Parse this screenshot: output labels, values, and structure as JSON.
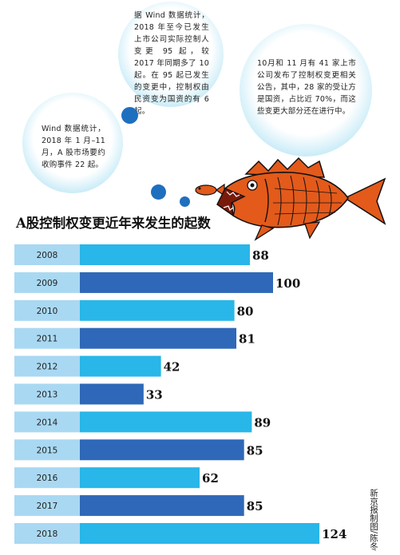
{
  "bubbles": {
    "top": "据 Wind 数据统计，2018 年至今已发生上市公司实际控制人变更 95 起，较 2017 年同期多了 10 起。在 95 起已发生的变更中，控制权由民资变为国资的有 6 起。",
    "right": "10月和 11 月有 41 家上市公司发布了控制权变更相关公告，其中，28 家的受让方是国资，占比近 70%，而这些变更大部分还在进行中。",
    "left": "Wind 数据统计，2018 年 1 月–11 月，A 股市场要约收购事件 22 起。"
  },
  "credit": "新京报制图/陈冬",
  "colors": {
    "light_bar": "#29b6e8",
    "dark_bar": "#2f68b8",
    "label_box": "#a9d8f2",
    "dot": "#1f6fbf",
    "fish": "#e35a1b"
  },
  "chart_data": {
    "type": "bar",
    "orientation": "horizontal",
    "title": "A股控制权变更近年来发生的起数",
    "categories": [
      "2008",
      "2009",
      "2010",
      "2011",
      "2012",
      "2013",
      "2014",
      "2015",
      "2016",
      "2017",
      "2018"
    ],
    "values": [
      88,
      100,
      80,
      81,
      42,
      33,
      89,
      85,
      62,
      85,
      124
    ],
    "data_labels": [
      "88",
      "100",
      "80",
      "81",
      "42",
      "33",
      "89",
      "85",
      "62",
      "85",
      "124"
    ]
  }
}
